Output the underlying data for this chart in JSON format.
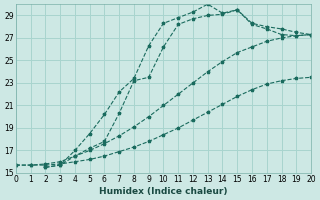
{
  "xlabel": "Humidex (Indice chaleur)",
  "bg_color": "#cde8e4",
  "grid_color": "#a8d4ce",
  "line_color": "#1a6b5e",
  "xlim": [
    0,
    20
  ],
  "ylim": [
    15,
    30
  ],
  "xticks": [
    0,
    1,
    2,
    3,
    4,
    5,
    6,
    7,
    8,
    9,
    10,
    11,
    12,
    13,
    14,
    15,
    16,
    17,
    18,
    19,
    20
  ],
  "yticks": [
    15,
    17,
    19,
    21,
    23,
    25,
    27,
    29
  ],
  "series": [
    {
      "x": [
        0,
        1,
        2,
        3,
        4,
        5,
        6,
        7,
        8,
        9,
        10,
        11,
        12,
        13,
        14,
        15,
        16,
        17,
        18,
        19,
        20
      ],
      "y": [
        15.7,
        15.7,
        15.7,
        15.8,
        16.0,
        16.2,
        16.5,
        16.9,
        17.3,
        17.8,
        18.4,
        19.0,
        19.7,
        20.4,
        21.1,
        21.8,
        22.4,
        22.9,
        23.2,
        23.4,
        23.5
      ],
      "linestyle": "--"
    },
    {
      "x": [
        0,
        1,
        2,
        3,
        4,
        5,
        6,
        7,
        8,
        9,
        10,
        11,
        12,
        13,
        14,
        15,
        16,
        17,
        18,
        19,
        20
      ],
      "y": [
        15.7,
        15.7,
        15.8,
        16.0,
        16.5,
        17.0,
        17.6,
        18.3,
        19.1,
        20.0,
        21.0,
        22.0,
        23.0,
        24.0,
        24.9,
        25.7,
        26.2,
        26.7,
        27.0,
        27.2,
        27.3
      ],
      "linestyle": "--"
    },
    {
      "x": [
        2,
        3,
        4,
        5,
        6,
        7,
        8,
        9,
        10,
        11,
        12,
        13,
        14,
        15,
        16,
        17,
        18,
        19,
        20
      ],
      "y": [
        15.5,
        15.7,
        17.0,
        18.5,
        20.2,
        22.2,
        23.4,
        26.3,
        28.3,
        28.8,
        29.3,
        30.0,
        29.2,
        29.5,
        28.3,
        28.0,
        27.8,
        27.5,
        27.3
      ],
      "linestyle": "--"
    },
    {
      "x": [
        2,
        3,
        4,
        5,
        6,
        7,
        8,
        9,
        10,
        11,
        12,
        13,
        14,
        15,
        16,
        17,
        18,
        19,
        20
      ],
      "y": [
        15.5,
        15.7,
        16.5,
        17.2,
        17.8,
        20.3,
        23.2,
        23.5,
        26.2,
        28.2,
        28.7,
        29.0,
        29.1,
        29.5,
        28.2,
        27.8,
        27.3,
        27.2,
        27.3
      ],
      "linestyle": "--"
    }
  ]
}
